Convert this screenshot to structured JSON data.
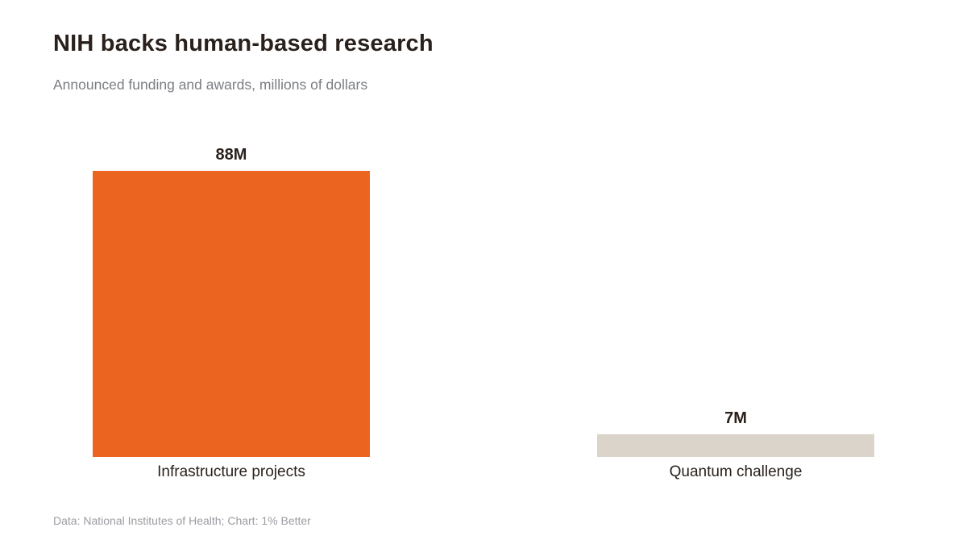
{
  "header": {
    "title": "NIH backs human-based research",
    "subtitle": "Announced funding and awards, millions of dollars"
  },
  "footer": {
    "source": "Data: National Institutes of Health; Chart: 1% Better"
  },
  "colors": {
    "highlight": "#ec6520",
    "muted": "#dad4ca"
  },
  "chart_data": {
    "type": "bar",
    "categories": [
      "Infrastructure projects",
      "Quantum challenge"
    ],
    "values": [
      88,
      7
    ],
    "value_labels": [
      "88M",
      "7M"
    ],
    "bar_colors": [
      "#ec6520",
      "#dad4ca"
    ],
    "ylim": [
      0,
      88
    ],
    "grid": false,
    "legend": "none"
  }
}
